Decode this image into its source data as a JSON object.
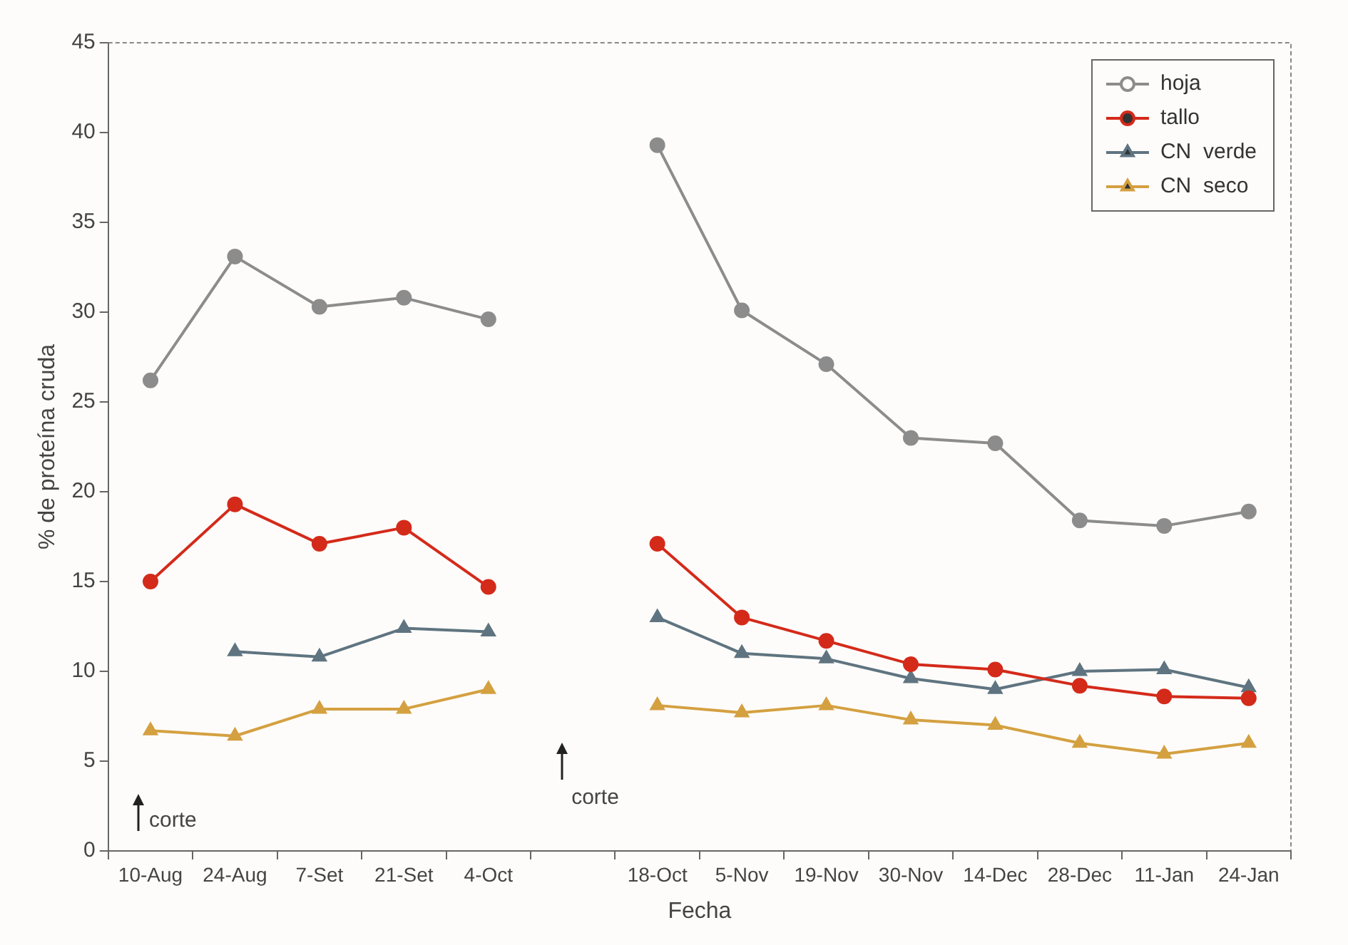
{
  "chart_data": {
    "type": "line",
    "xlabel": "Fecha",
    "ylabel": "% de proteína cruda",
    "categories": [
      "10-Aug",
      "24-Aug",
      "7-Set",
      "21-Set",
      "4-Oct",
      null,
      "18-Oct",
      "5-Nov",
      "19-Nov",
      "30-Nov",
      "14-Dec",
      "28-Dec",
      "11-Jan",
      "24-Jan"
    ],
    "series": [
      {
        "name": "hoja",
        "color": "#8c8c8c",
        "marker": "circle",
        "values": [
          26.2,
          33.1,
          30.3,
          30.8,
          29.6,
          null,
          39.3,
          30.1,
          27.1,
          23.0,
          22.7,
          18.4,
          18.1,
          18.9
        ]
      },
      {
        "name": "tallo",
        "color": "#d42a1a",
        "marker": "circle",
        "values": [
          15.0,
          19.3,
          17.1,
          18.0,
          14.7,
          null,
          17.1,
          13.0,
          11.7,
          10.4,
          10.1,
          9.2,
          8.6,
          8.5
        ]
      },
      {
        "name": "CN  verde",
        "color": "#5f7480",
        "marker": "triangle",
        "values": [
          null,
          11.1,
          10.8,
          12.4,
          12.2,
          null,
          13.0,
          11.0,
          10.7,
          9.6,
          9.0,
          10.0,
          10.1,
          9.1
        ]
      },
      {
        "name": "CN  seco",
        "color": "#d4a040",
        "marker": "triangle",
        "values": [
          6.7,
          6.4,
          7.9,
          7.9,
          9.0,
          null,
          8.1,
          7.7,
          8.1,
          7.3,
          7.0,
          6.0,
          5.4,
          6.0
        ]
      }
    ],
    "ylim": [
      0,
      45
    ],
    "yticks": [
      0,
      5,
      10,
      15,
      20,
      25,
      30,
      35,
      40,
      45
    ],
    "grid": false,
    "legend": "top right",
    "line_style": "solid",
    "annotations": [
      "corte",
      "corte"
    ]
  }
}
